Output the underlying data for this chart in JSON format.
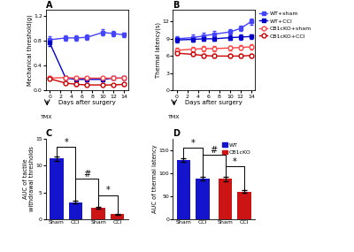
{
  "panel_A": {
    "days": [
      0,
      3,
      5,
      7,
      10,
      12,
      14
    ],
    "WT_sham": [
      0.82,
      0.85,
      0.85,
      0.86,
      0.94,
      0.92,
      0.9
    ],
    "WT_sham_err": [
      0.05,
      0.04,
      0.04,
      0.04,
      0.05,
      0.04,
      0.04
    ],
    "WT_CCI": [
      0.77,
      0.2,
      0.18,
      0.18,
      0.18,
      0.2,
      0.2
    ],
    "WT_CCI_err": [
      0.05,
      0.03,
      0.03,
      0.03,
      0.03,
      0.03,
      0.03
    ],
    "CB1_sham": [
      0.2,
      0.21,
      0.2,
      0.2,
      0.2,
      0.2,
      0.2
    ],
    "CB1_sham_err": [
      0.02,
      0.02,
      0.02,
      0.02,
      0.02,
      0.02,
      0.02
    ],
    "CB1_CCI": [
      0.19,
      0.12,
      0.1,
      0.09,
      0.09,
      0.09,
      0.1
    ],
    "CB1_CCI_err": [
      0.02,
      0.02,
      0.02,
      0.02,
      0.02,
      0.02,
      0.02
    ],
    "ylabel": "Mechanical threshold(g)",
    "xlabel": "Days after surgery",
    "ylim": [
      0,
      1.3
    ],
    "yticks": [
      0.0,
      0.4,
      0.8,
      1.2
    ]
  },
  "panel_B": {
    "days": [
      0,
      3,
      5,
      7,
      10,
      12,
      14
    ],
    "WT_sham": [
      9.0,
      9.2,
      9.5,
      9.8,
      10.2,
      10.8,
      12.0
    ],
    "WT_sham_err": [
      0.5,
      0.5,
      0.5,
      0.5,
      0.5,
      0.5,
      0.5
    ],
    "WT_CCI": [
      8.8,
      8.9,
      9.0,
      9.0,
      9.2,
      9.3,
      9.4
    ],
    "WT_CCI_err": [
      0.4,
      0.4,
      0.4,
      0.4,
      0.4,
      0.4,
      0.4
    ],
    "CB1_sham": [
      7.0,
      7.2,
      7.3,
      7.3,
      7.4,
      7.5,
      7.6
    ],
    "CB1_sham_err": [
      0.4,
      0.4,
      0.4,
      0.4,
      0.4,
      0.4,
      0.4
    ],
    "CB1_CCI": [
      6.5,
      6.3,
      6.1,
      6.0,
      6.0,
      6.0,
      6.1
    ],
    "CB1_CCI_err": [
      0.3,
      0.3,
      0.3,
      0.3,
      0.3,
      0.3,
      0.3
    ],
    "ylabel": "Thermal latency(s)",
    "xlabel": "Days after surgery",
    "ylim": [
      0,
      14
    ],
    "yticks": [
      0,
      3,
      6,
      9,
      12
    ]
  },
  "panel_C": {
    "categories": [
      "Sham",
      "CCI",
      "Sham",
      "CCI"
    ],
    "values": [
      11.3,
      3.2,
      2.1,
      0.9
    ],
    "errors": [
      0.35,
      0.3,
      0.2,
      0.12
    ],
    "colors": [
      "#1414cc",
      "#1414cc",
      "#cc1414",
      "#cc1414"
    ],
    "ylabel": "AUC of tactile\nwithdrawal thresholds",
    "ylim": [
      0,
      15
    ],
    "yticks": [
      0,
      5,
      10,
      15
    ]
  },
  "panel_D": {
    "categories": [
      "Sham",
      "CCI",
      "Sham",
      "CCI"
    ],
    "values": [
      128,
      88,
      88,
      60
    ],
    "errors": [
      4,
      4,
      5,
      3
    ],
    "colors": [
      "#1414cc",
      "#1414cc",
      "#cc1414",
      "#cc1414"
    ],
    "ylabel": "AUC of thermal latency",
    "ylim": [
      0,
      175
    ],
    "yticks": [
      0,
      50,
      100,
      150
    ]
  },
  "colors": {
    "WT_sham": "#4444ff",
    "WT_CCI": "#0000cc",
    "CB1_sham": "#ff4444",
    "CB1_CCI": "#cc0000"
  }
}
